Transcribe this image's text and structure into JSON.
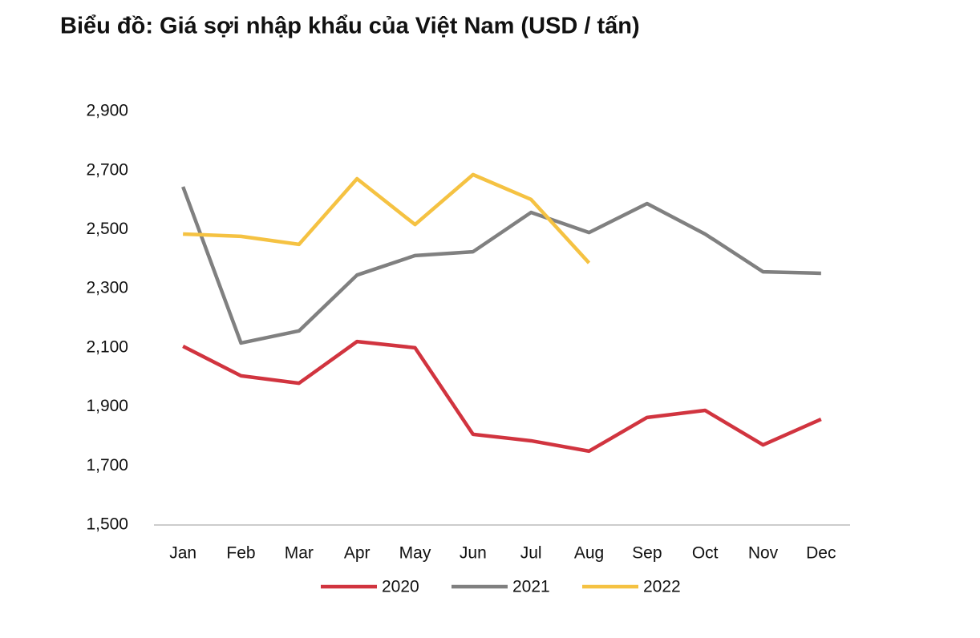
{
  "chart_data": {
    "type": "line",
    "title": "Biểu đồ: Giá sợi nhập khẩu của Việt Nam (USD / tấn)",
    "categories": [
      "Jan",
      "Feb",
      "Mar",
      "Apr",
      "May",
      "Jun",
      "Jul",
      "Aug",
      "Sep",
      "Oct",
      "Nov",
      "Dec"
    ],
    "series": [
      {
        "name": "2020",
        "color": "#d1343f",
        "values": [
          2105,
          2005,
          1980,
          2121,
          2100,
          1807,
          1785,
          1750,
          1864,
          1888,
          1771,
          1858
        ]
      },
      {
        "name": "2021",
        "color": "#808080",
        "values": [
          2645,
          2116,
          2157,
          2346,
          2412,
          2425,
          2558,
          2490,
          2588,
          2485,
          2357,
          2352
        ]
      },
      {
        "name": "2022",
        "color": "#f5c242",
        "values": [
          2485,
          2477,
          2450,
          2672,
          2517,
          2686,
          2602,
          2387,
          null,
          null,
          null,
          null
        ]
      }
    ],
    "ylim": [
      1500,
      2900
    ],
    "yticks": [
      {
        "value": 1500,
        "label": "1,500"
      },
      {
        "value": 1700,
        "label": "1,700"
      },
      {
        "value": 1900,
        "label": "1,900"
      },
      {
        "value": 2100,
        "label": "2,100"
      },
      {
        "value": 2300,
        "label": "2,300"
      },
      {
        "value": 2500,
        "label": "2,500"
      },
      {
        "value": 2700,
        "label": "2,700"
      },
      {
        "value": 2900,
        "label": "2,900"
      }
    ],
    "grid": false,
    "legend": "bottom"
  }
}
